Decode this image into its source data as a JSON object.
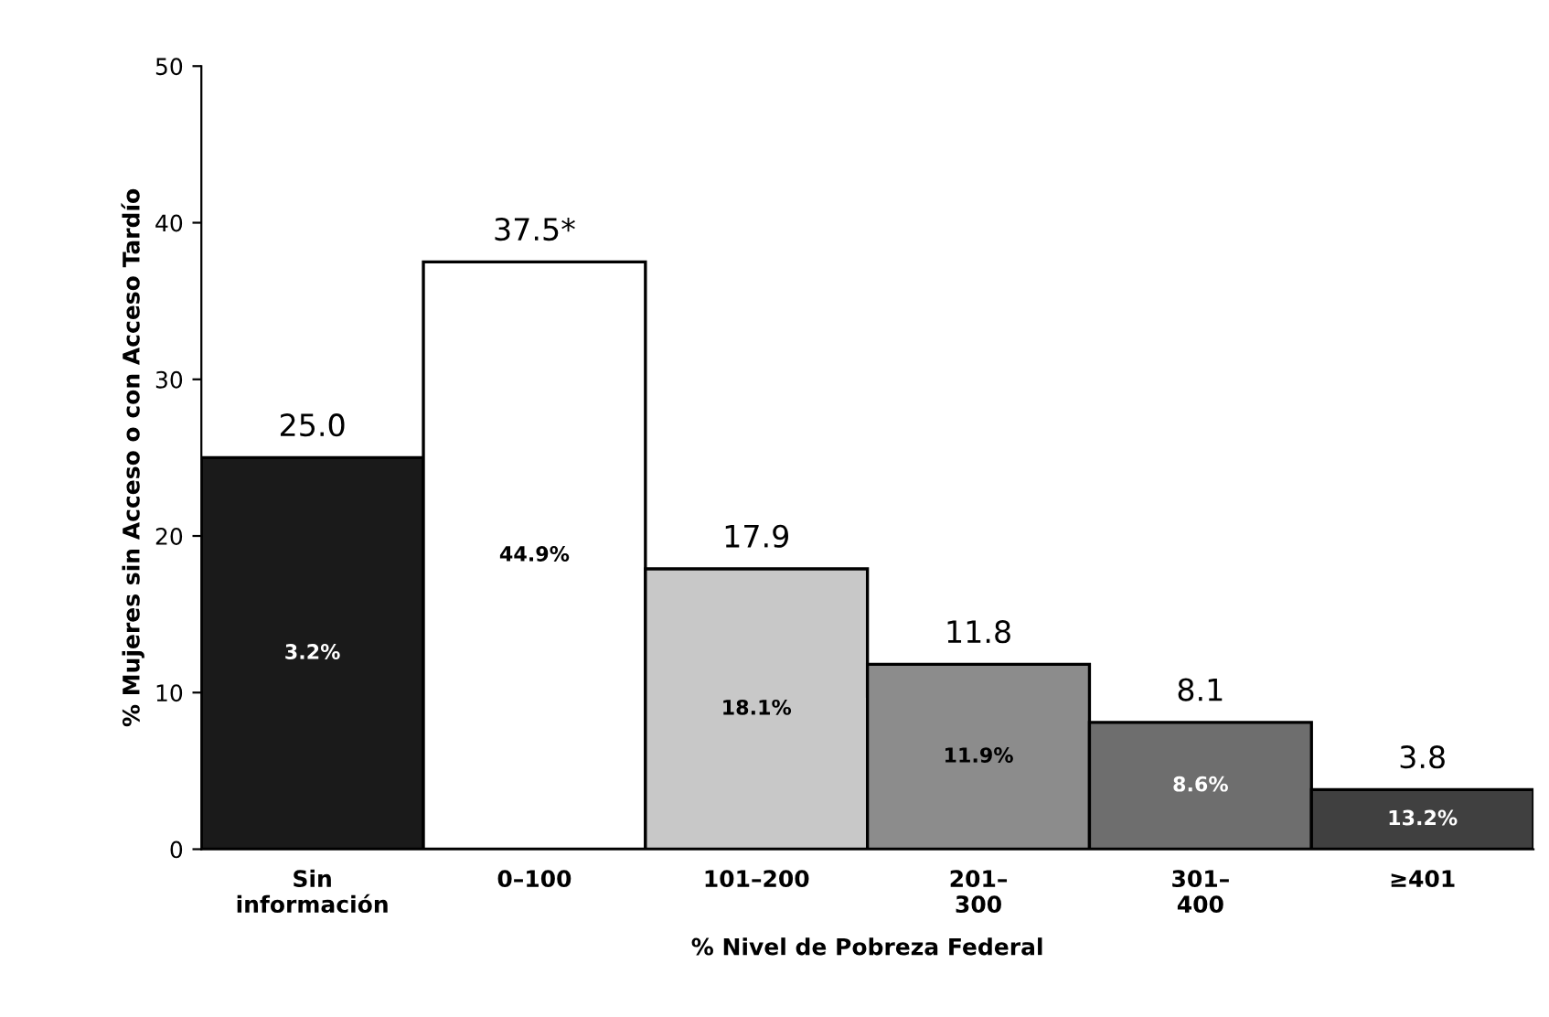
{
  "chart_data": {
    "type": "bar",
    "categories": [
      "Sin\ninformación",
      "0–100",
      "101–200",
      "201–\n300",
      "301–\n400",
      "≥401"
    ],
    "values": [
      25.0,
      37.5,
      17.9,
      11.8,
      8.1,
      3.8
    ],
    "value_labels": [
      "25.0",
      "37.5*",
      "17.9",
      "11.8",
      "8.1",
      "3.8"
    ],
    "colors": [
      "#1a1a1a",
      "#ffffff",
      "#c8c8c8",
      "#8c8c8c",
      "#6e6e6e",
      "#404040"
    ],
    "ylabel": "% Mujeres sin Acceso o con Acceso Tardío",
    "xlabel": "% Nivel de Pobreza Federal",
    "ylim": [
      0,
      50
    ],
    "yticks": [
      0,
      10,
      20,
      30,
      40,
      50
    ],
    "annotations": [
      "3.2%",
      "44.9%",
      "18.1%",
      "11.9%",
      "8.6%",
      "13.2%"
    ],
    "grid": false,
    "legend": false
  }
}
